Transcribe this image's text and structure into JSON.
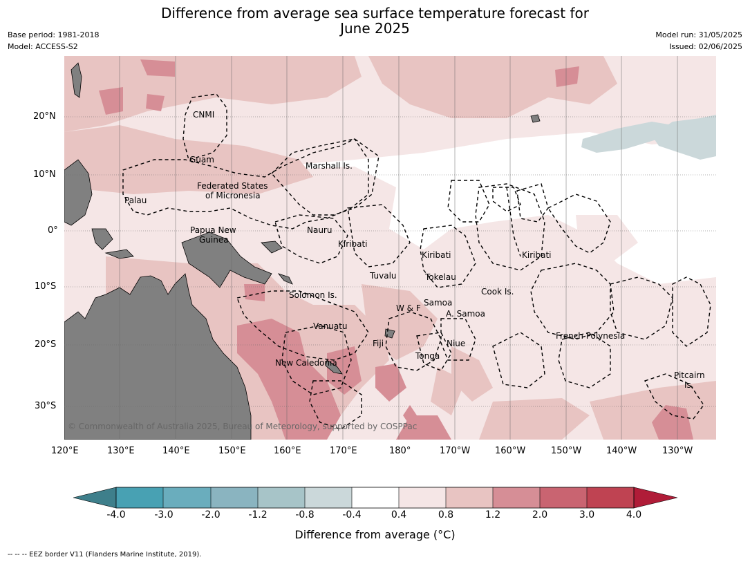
{
  "title": {
    "line1": "Difference from average sea surface temperature forecast for",
    "line2": "June 2025"
  },
  "meta_left": {
    "base_period": "Base period: 1981-2018",
    "model": "Model: ACCESS-S2"
  },
  "meta_right": {
    "model_run": "Model run: 31/05/2025",
    "issued": "Issued: 02/06/2025"
  },
  "axes": {
    "lat_labels": [
      "20°N",
      "10°N",
      "0°",
      "10°S",
      "20°S",
      "30°S"
    ],
    "lon_labels": [
      "120°E",
      "130°E",
      "140°E",
      "150°E",
      "160°E",
      "170°E",
      "180°",
      "170°W",
      "160°W",
      "150°W",
      "140°W",
      "130°W"
    ]
  },
  "region_labels": {
    "cnmi": "CNMI",
    "guam": "Guam",
    "marshall": "Marshall Is.",
    "fsm_1": "Federated States",
    "fsm_2": "of Micronesia",
    "palau": "Palau",
    "png_1": "Papua New",
    "png_2": "Guinea",
    "nauru": "Nauru",
    "kiribati_w": "Kiribati",
    "kiribati_c": "Kiribati",
    "kiribati_e": "Kiribati",
    "tuvalu": "Tuvalu",
    "tokelau": "Tokelau",
    "cook": "Cook Is.",
    "solomon": "Solomon Is.",
    "wf": "W & F",
    "samoa": "Samoa",
    "asamoa": "A. Samoa",
    "vanuatu": "Vanuatu",
    "fiji": "Fiji",
    "niue": "Niue",
    "tonga": "Tonga",
    "french_polynesia": "French Polynesia",
    "new_caledonia": "New Caledonia",
    "pitcairn_1": "Pitcairn",
    "pitcairn_2": "Is."
  },
  "copyright": "© Commonwealth of Australia 2025, Bureau of Meteorology, supported by COSPPac",
  "colorbar": {
    "label": "Difference from average (°C)",
    "ticks": [
      "-4.0",
      "-3.0",
      "-2.0",
      "-1.2",
      "-0.8",
      "-0.4",
      "0.4",
      "0.8",
      "1.2",
      "2.0",
      "3.0",
      "4.0"
    ],
    "colors": [
      "#3e7f8b",
      "#48a1b3",
      "#6aadbd",
      "#8ab4c0",
      "#a7c4c8",
      "#cbd8da",
      "#ffffff",
      "#f5e6e6",
      "#e8c4c2",
      "#d68e96",
      "#c96471",
      "#bf4352",
      "#b01c38"
    ]
  },
  "footnote": "--  --  -- EEZ border V11 (Flanders Marine Institute, 2019).",
  "colors": {
    "land": "#808080",
    "light_pink": "#f5e6e6",
    "pink": "#e8c4c2",
    "dark_pink": "#d68e96",
    "light_blue": "#cbd8da"
  }
}
